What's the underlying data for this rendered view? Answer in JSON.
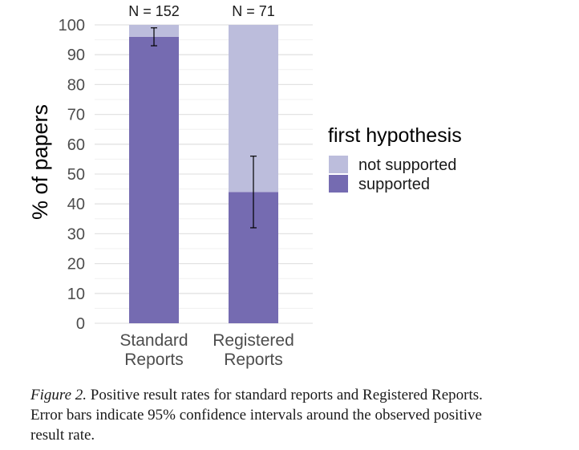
{
  "chart_data": {
    "type": "bar",
    "stacked": true,
    "title": "",
    "xlabel": "",
    "ylabel": "% of papers",
    "ylim": [
      0,
      100
    ],
    "yticks": [
      0,
      10,
      20,
      30,
      40,
      50,
      60,
      70,
      80,
      90,
      100
    ],
    "grid": true,
    "categories": [
      {
        "line1": "Standard",
        "line2": "Reports",
        "n_label": "N = 152"
      },
      {
        "line1": "Registered",
        "line2": "Reports",
        "n_label": "N = 71"
      }
    ],
    "series": [
      {
        "name": "supported",
        "values": [
          96,
          44
        ],
        "color": "#756bb1"
      },
      {
        "name": "not supported",
        "values": [
          4,
          56
        ],
        "color": "#bcbddc"
      }
    ],
    "error_bars": [
      {
        "center": 96,
        "lower": 93,
        "upper": 99
      },
      {
        "center": 44,
        "lower": 32,
        "upper": 56
      }
    ],
    "legend": {
      "title": "first hypothesis",
      "placement": "right",
      "entries": [
        {
          "label": "not supported",
          "color": "#bcbddc"
        },
        {
          "label": "supported",
          "color": "#756bb1"
        }
      ]
    }
  },
  "caption": {
    "label": "Figure 2.",
    "text": " Positive result rates for standard reports and Registered Reports. Error bars indicate 95% confidence intervals around the observed positive result rate."
  }
}
